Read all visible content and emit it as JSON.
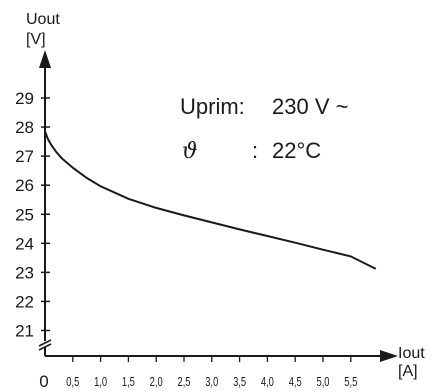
{
  "chart_data": {
    "type": "line",
    "y_axis": {
      "label_line1": "Uout",
      "label_line2": "[V]",
      "ticks": [
        21,
        22,
        23,
        24,
        25,
        26,
        27,
        28,
        29
      ],
      "ylim": [
        20.2,
        29.9
      ],
      "axis_break": true
    },
    "x_axis": {
      "label_line1": "Iout",
      "label_line2": "[A]",
      "zero_label": "0",
      "ticks": [
        {
          "value": 0.5,
          "label": "0,5"
        },
        {
          "value": 1.0,
          "label": "1,0"
        },
        {
          "value": 1.5,
          "label": "1,5"
        },
        {
          "value": 2.0,
          "label": "2,0"
        },
        {
          "value": 2.5,
          "label": "2,5"
        },
        {
          "value": 3.0,
          "label": "3,0"
        },
        {
          "value": 3.5,
          "label": "3,5"
        },
        {
          "value": 4.0,
          "label": "4,0"
        },
        {
          "value": 4.5,
          "label": "4,5"
        },
        {
          "value": 5.0,
          "label": "5,0"
        },
        {
          "value": 5.5,
          "label": "5,5"
        }
      ],
      "xlim": [
        0,
        6.2
      ]
    },
    "series": [
      {
        "color": "#1a1a1a",
        "x": [
          0,
          0.05,
          0.1,
          0.2,
          0.3,
          0.5,
          0.75,
          1.0,
          1.5,
          2.0,
          2.5,
          3.0,
          3.5,
          4.0,
          4.5,
          5.0,
          5.5,
          5.95
        ],
        "values": [
          27.85,
          27.6,
          27.42,
          27.15,
          26.93,
          26.6,
          26.25,
          25.96,
          25.53,
          25.22,
          24.96,
          24.72,
          24.48,
          24.25,
          24.02,
          23.78,
          23.55,
          23.12
        ]
      }
    ],
    "annotations": {
      "uprim_label": "Uprim:",
      "uprim_value": "230 V ~",
      "theta_symbol": "ϑ",
      "theta_colon": ":",
      "theta_value": "22°C"
    },
    "grid": false
  }
}
